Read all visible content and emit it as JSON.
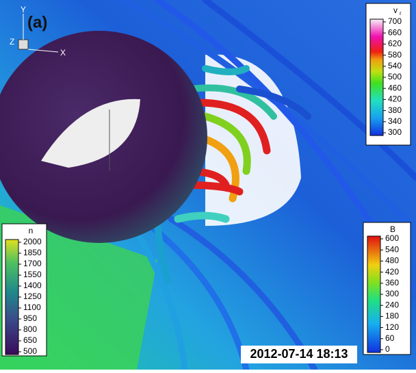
{
  "panel_label": "(a)",
  "axes": {
    "y": "Y",
    "z": "Z",
    "x": "X"
  },
  "timestamp": "2012-07-14 18:13",
  "colorbars": {
    "vr": {
      "title": "v",
      "subscript": "r",
      "ticks": [
        700,
        660,
        620,
        580,
        540,
        500,
        460,
        420,
        380,
        340,
        300
      ]
    },
    "n": {
      "title": "n",
      "ticks": [
        2000,
        1850,
        1700,
        1550,
        1400,
        1250,
        1100,
        950,
        800,
        650,
        500
      ]
    },
    "b": {
      "title": "B",
      "ticks": [
        600,
        540,
        480,
        420,
        360,
        300,
        240,
        180,
        120,
        60,
        0
      ]
    }
  }
}
